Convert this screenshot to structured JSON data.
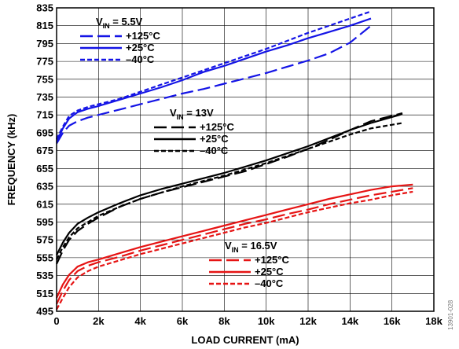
{
  "chart_data": {
    "type": "line",
    "xlabel": "LOAD CURRENT (mA)",
    "ylabel": "FREQUENCY (kHz)",
    "xlim": [
      0,
      18000
    ],
    "ylim": [
      495,
      835
    ],
    "xticks": [
      0,
      2000,
      4000,
      6000,
      8000,
      10000,
      12000,
      14000,
      16000,
      18000
    ],
    "xtick_labels": [
      "0",
      "2k",
      "4k",
      "6k",
      "8k",
      "10k",
      "12k",
      "14k",
      "16k",
      "18k"
    ],
    "yticks": [
      495,
      515,
      535,
      555,
      575,
      595,
      615,
      635,
      655,
      675,
      695,
      715,
      735,
      755,
      775,
      795,
      815,
      835
    ],
    "grid": true,
    "figure_code": "13901-028",
    "groups": [
      {
        "title_main": "V",
        "title_sub": "IN",
        "title_rest": " = 5.5V",
        "color": "#1414e6",
        "legend_position": "top-left",
        "series": [
          {
            "name": "+125°C",
            "dash": "long-dash",
            "x": [
              0,
              300,
              600,
              1000,
              1500,
              2000,
              3000,
              4000,
              5000,
              6000,
              7000,
              8000,
              9000,
              10000,
              11000,
              12000,
              13000,
              14000,
              15000
            ],
            "y": [
              683,
              695,
              703,
              708,
              712,
              715,
              721,
              727,
              733,
              739,
              744,
              750,
              756,
              762,
              769,
              776,
              784,
              796,
              815
            ]
          },
          {
            "name": "+25°C",
            "dash": "solid",
            "x": [
              0,
              300,
              600,
              1000,
              1500,
              2000,
              3000,
              4000,
              5000,
              6000,
              7000,
              8000,
              9000,
              10000,
              11000,
              12000,
              13000,
              14000,
              15000
            ],
            "y": [
              685,
              700,
              711,
              718,
              722,
              725,
              732,
              739,
              746,
              754,
              763,
              770,
              778,
              786,
              793,
              801,
              808,
              815,
              823
            ]
          },
          {
            "name": "–40°C",
            "dash": "short-dash",
            "x": [
              0,
              300,
              600,
              1000,
              1500,
              2000,
              3000,
              4000,
              5000,
              6000,
              7000,
              8000,
              9000,
              10000,
              11000,
              12000,
              13000,
              14000,
              15000
            ],
            "y": [
              688,
              702,
              714,
              720,
              724,
              727,
              733,
              741,
              749,
              757,
              765,
              773,
              781,
              789,
              798,
              807,
              815,
              823,
              831
            ]
          }
        ]
      },
      {
        "title_main": "V",
        "title_sub": "IN",
        "title_rest": " = 13V",
        "color": "#000000",
        "legend_position": "center",
        "series": [
          {
            "name": "+125°C",
            "dash": "long-dash",
            "x": [
              0,
              300,
              600,
              1000,
              1500,
              2000,
              3000,
              4000,
              5000,
              6000,
              7000,
              8000,
              9000,
              10000,
              11000,
              12000,
              13000,
              14000,
              15000,
              16500
            ],
            "y": [
              548,
              563,
              575,
              585,
              593,
              600,
              612,
              621,
              628,
              634,
              640,
              646,
              652,
              660,
              668,
              677,
              687,
              698,
              708,
              717
            ]
          },
          {
            "name": "+25°C",
            "dash": "solid",
            "x": [
              0,
              300,
              600,
              1000,
              1500,
              2000,
              3000,
              4000,
              5000,
              6000,
              7000,
              8000,
              9000,
              10000,
              11000,
              12000,
              13000,
              14000,
              15000,
              16500
            ],
            "y": [
              558,
              572,
              583,
              593,
              600,
              606,
              616,
              625,
              632,
              638,
              644,
              650,
              657,
              664,
              672,
              680,
              689,
              698,
              706,
              716
            ]
          },
          {
            "name": "–40°C",
            "dash": "short-dash",
            "x": [
              0,
              300,
              600,
              1000,
              1500,
              2000,
              3000,
              4000,
              5000,
              6000,
              7000,
              8000,
              9000,
              10000,
              11000,
              12000,
              13000,
              14000,
              15000,
              16500
            ],
            "y": [
              553,
              567,
              578,
              588,
              595,
              602,
              612,
              621,
              628,
              635,
              641,
              647,
              654,
              661,
              669,
              677,
              685,
              693,
              700,
              706
            ]
          }
        ]
      },
      {
        "title_main": "V",
        "title_sub": "IN",
        "title_rest": " = 16.5V",
        "color": "#e61414",
        "legend_position": "bottom-center",
        "series": [
          {
            "name": "+125°C",
            "dash": "long-dash",
            "x": [
              0,
              300,
              600,
              1000,
              1500,
              2000,
              3000,
              4000,
              5000,
              6000,
              7000,
              8000,
              9000,
              10000,
              11000,
              12000,
              13000,
              14000,
              15000,
              16000,
              17000
            ],
            "y": [
              503,
              518,
              530,
              540,
              546,
              550,
              556,
              563,
              569,
              575,
              581,
              587,
              593,
              598,
              604,
              609,
              615,
              620,
              625,
              629,
              633
            ]
          },
          {
            "name": "+25°C",
            "dash": "solid",
            "x": [
              0,
              300,
              600,
              1000,
              1500,
              2000,
              3000,
              4000,
              5000,
              6000,
              7000,
              8000,
              9000,
              10000,
              11000,
              12000,
              13000,
              14000,
              15000,
              16000,
              17000
            ],
            "y": [
              510,
              525,
              536,
              545,
              550,
              553,
              560,
              567,
              573,
              579,
              585,
              591,
              597,
              603,
              609,
              615,
              621,
              626,
              631,
              635,
              637
            ]
          },
          {
            "name": "–40°C",
            "dash": "short-dash",
            "x": [
              0,
              300,
              600,
              1000,
              1500,
              2000,
              3000,
              4000,
              5000,
              6000,
              7000,
              8000,
              9000,
              10000,
              11000,
              12000,
              13000,
              14000,
              15000,
              16000,
              17000
            ],
            "y": [
              497,
              510,
              522,
              533,
              540,
              545,
              552,
              559,
              565,
              571,
              577,
              583,
              589,
              594,
              600,
              606,
              611,
              616,
              620,
              625,
              629
            ]
          }
        ]
      }
    ]
  }
}
